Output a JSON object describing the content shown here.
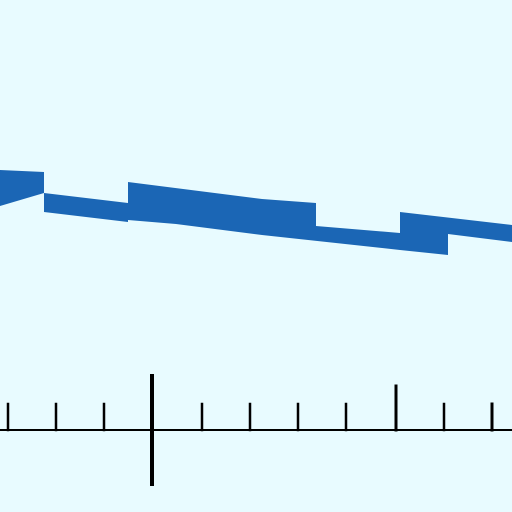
{
  "colors": {
    "background": "#e8fbff",
    "ribbon": "#1b66b5",
    "axis": "#000000"
  },
  "figure": {
    "kind": "segmented sloping ribbon above a horizontal ruler",
    "ribbon_segment_count": 5,
    "ruler_minor_tick_count": 9,
    "ruler_major_tick_count": 2,
    "ruler_has_long_center_mark": true
  }
}
